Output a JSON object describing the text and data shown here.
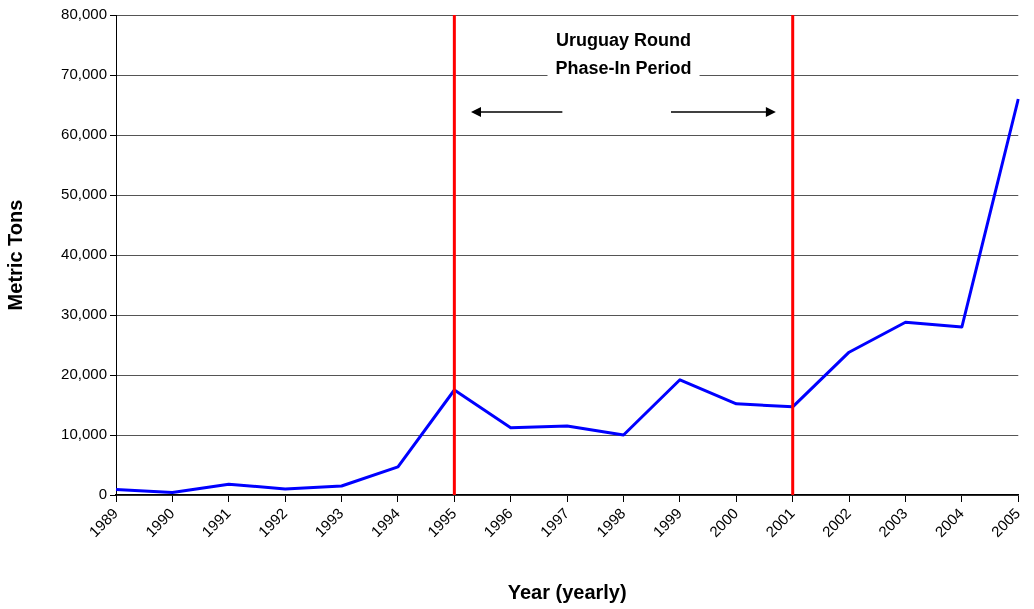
{
  "chart_data": {
    "type": "line",
    "xlabel": "Year (yearly)",
    "ylabel": "Metric Tons",
    "categories": [
      "1989",
      "1990",
      "1991",
      "1992",
      "1993",
      "1994",
      "1995",
      "1996",
      "1997",
      "1998",
      "1999",
      "2000",
      "2001",
      "2002",
      "2003",
      "2004",
      "2005"
    ],
    "series": [
      {
        "color": "#0000ff",
        "values": [
          900,
          400,
          1800,
          1000,
          1500,
          4700,
          17500,
          11200,
          11500,
          10000,
          19200,
          15200,
          14700,
          23800,
          28800,
          28000,
          66000
        ]
      }
    ],
    "ylim": [
      0,
      80000
    ],
    "yticks": [
      0,
      {
        "value": 10000,
        "label": "10,000"
      },
      {
        "value": 20000,
        "label": "20,000"
      },
      {
        "value": 30000,
        "label": "30,000"
      },
      {
        "value": 40000,
        "label": "40,000"
      },
      {
        "value": 50000,
        "label": "50,000"
      },
      {
        "value": 60000,
        "label": "60,000"
      },
      {
        "value": 70000,
        "label": "70,000"
      },
      {
        "value": 80000,
        "label": "80,000"
      }
    ],
    "grid": "y",
    "legend": false,
    "marker": "none",
    "line_style": "solid",
    "ref_lines": [
      {
        "axis": "x",
        "value": "1995",
        "color": "#ff0000"
      },
      {
        "axis": "x",
        "value": "2001",
        "color": "#ff0000"
      }
    ],
    "annotations": [
      "Uruguay Round Phase-In Period"
    ]
  }
}
